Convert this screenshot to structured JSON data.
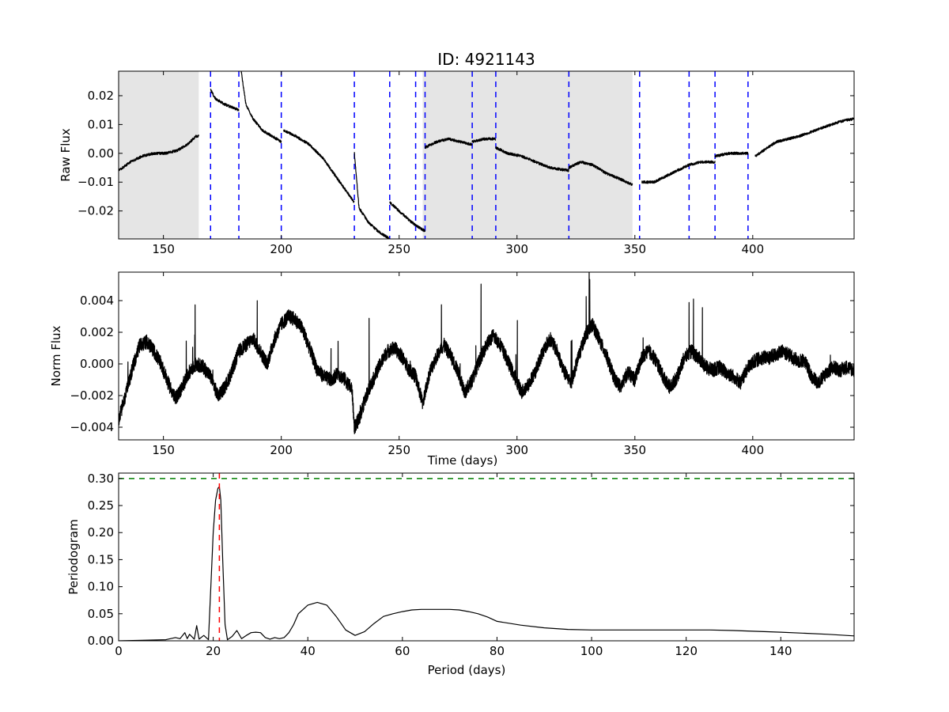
{
  "figure_title": "ID: 4921143",
  "chart_data": [
    {
      "type": "line",
      "id": "raw",
      "title": "ID: 4921143",
      "xlabel": "",
      "ylabel": "Raw Flux",
      "xlim": [
        131,
        443
      ],
      "ylim": [
        -0.0297,
        0.0285
      ],
      "xticks": [
        150,
        200,
        250,
        300,
        350,
        400
      ],
      "yticks": [
        -0.02,
        -0.01,
        0.0,
        0.01,
        0.02
      ],
      "xtick_labels": [
        "150",
        "200",
        "250",
        "300",
        "350",
        "400"
      ],
      "ytick_labels": [
        "−0.02",
        "−0.01",
        "0.00",
        "0.01",
        "0.02"
      ],
      "shaded_regions": [
        [
          131,
          165
        ],
        [
          260,
          349
        ]
      ],
      "vlines": [
        170,
        182,
        200,
        231,
        246,
        257,
        261,
        281,
        291,
        322,
        352,
        373,
        384,
        398
      ],
      "vline_color": "#0000ff",
      "series_color": "#000000",
      "series": [
        {
          "name": "",
          "x": [
            131,
            136,
            141,
            146,
            151,
            156,
            160,
            164,
            165
          ],
          "y": [
            -0.006,
            -0.003,
            -0.001,
            0.0,
            0.0,
            0.001,
            0.003,
            0.006,
            0.006
          ]
        },
        {
          "name": "",
          "x": [
            170,
            172,
            176,
            182
          ],
          "y": [
            0.022,
            0.019,
            0.017,
            0.015
          ]
        },
        {
          "name": "",
          "x": [
            183,
            185,
            188,
            192,
            196,
            200
          ],
          "y": [
            0.0285,
            0.017,
            0.012,
            0.008,
            0.006,
            0.004
          ]
        },
        {
          "name": "",
          "x": [
            201,
            206,
            212,
            218,
            224,
            231
          ],
          "y": [
            0.008,
            0.006,
            0.003,
            -0.002,
            -0.009,
            -0.017
          ]
        },
        {
          "name": "",
          "x": [
            231,
            233,
            237,
            241,
            246
          ],
          "y": [
            0.0,
            -0.019,
            -0.024,
            -0.027,
            -0.0297
          ]
        },
        {
          "name": "",
          "x": [
            246,
            250,
            254,
            257
          ],
          "y": [
            -0.017,
            -0.02,
            -0.023,
            -0.025
          ]
        },
        {
          "name": "",
          "x": [
            257,
            259,
            261
          ],
          "y": [
            -0.025,
            -0.026,
            -0.027
          ]
        },
        {
          "name": "",
          "x": [
            261,
            266,
            271,
            276,
            281
          ],
          "y": [
            0.002,
            0.004,
            0.005,
            0.004,
            0.003
          ]
        },
        {
          "name": "",
          "x": [
            281,
            286,
            291
          ],
          "y": [
            0.004,
            0.005,
            0.005
          ]
        },
        {
          "name": "",
          "x": [
            291,
            296,
            302,
            308,
            314,
            322
          ],
          "y": [
            0.002,
            0.0,
            -0.001,
            -0.003,
            -0.005,
            -0.006
          ]
        },
        {
          "name": "",
          "x": [
            322,
            327,
            332,
            338,
            344,
            349
          ],
          "y": [
            -0.005,
            -0.003,
            -0.004,
            -0.007,
            -0.009,
            -0.011
          ]
        },
        {
          "name": "",
          "x": [
            353,
            358,
            363,
            368,
            373
          ],
          "y": [
            -0.01,
            -0.01,
            -0.008,
            -0.006,
            -0.004
          ]
        },
        {
          "name": "",
          "x": [
            373,
            378,
            384
          ],
          "y": [
            -0.004,
            -0.003,
            -0.003
          ]
        },
        {
          "name": "",
          "x": [
            384,
            390,
            395,
            398
          ],
          "y": [
            -0.001,
            0.0,
            0.0,
            0.0
          ]
        },
        {
          "name": "",
          "x": [
            401,
            410,
            420,
            430,
            437,
            443
          ],
          "y": [
            -0.001,
            0.004,
            0.006,
            0.009,
            0.011,
            0.012
          ]
        }
      ]
    },
    {
      "type": "line",
      "id": "norm",
      "title": "",
      "xlabel": "Time (days)",
      "ylabel": "Norm Flux",
      "xlim": [
        131,
        443
      ],
      "ylim": [
        -0.0048,
        0.0058
      ],
      "xticks": [
        150,
        200,
        250,
        300,
        350,
        400
      ],
      "yticks": [
        -0.004,
        -0.002,
        0.0,
        0.002,
        0.004
      ],
      "xtick_labels": [
        "150",
        "200",
        "250",
        "300",
        "350",
        "400"
      ],
      "ytick_labels": [
        "−0.004",
        "−0.002",
        "0.000",
        "0.002",
        "0.004"
      ],
      "series_color": "#000000",
      "series": [
        {
          "name": "",
          "x": [
            131,
            134,
            137,
            140,
            143,
            146,
            149,
            152,
            155,
            158,
            161,
            164,
            167,
            170,
            173,
            176,
            179,
            182,
            185,
            188,
            191,
            194,
            197,
            200,
            203,
            206,
            209,
            212,
            215,
            218,
            221,
            224,
            227,
            230,
            231,
            233,
            236,
            239,
            242,
            245,
            248,
            251,
            254,
            257,
            260,
            263,
            266,
            269,
            272,
            275,
            278,
            281,
            284,
            287,
            290,
            293,
            296,
            299,
            302,
            305,
            308,
            311,
            314,
            317,
            320,
            323,
            326,
            329,
            332,
            335,
            338,
            341,
            344,
            347,
            350,
            353,
            356,
            359,
            362,
            365,
            368,
            371,
            374,
            377,
            380,
            383,
            386,
            389,
            392,
            395,
            398,
            401,
            404,
            407,
            410,
            413,
            416,
            419,
            422,
            425,
            428,
            431,
            434,
            437,
            440,
            443
          ],
          "y": [
            -0.0035,
            -0.002,
            -0.0002,
            0.0012,
            0.0014,
            0.0008,
            0.0,
            -0.0012,
            -0.0022,
            -0.0015,
            -0.0005,
            0.0,
            -0.0002,
            -0.0008,
            -0.002,
            -0.0015,
            -0.0005,
            0.0008,
            0.0012,
            0.0016,
            0.0008,
            0.0,
            0.0015,
            0.0025,
            0.003,
            0.0028,
            0.0022,
            0.001,
            -0.0003,
            -0.0008,
            -0.001,
            -0.0006,
            -0.001,
            -0.0016,
            -0.004,
            -0.0035,
            -0.002,
            -0.001,
            0.0,
            0.0008,
            0.001,
            0.0005,
            -0.0003,
            -0.0008,
            -0.0025,
            -0.0005,
            0.0005,
            0.0012,
            0.0005,
            -0.0005,
            -0.0018,
            -0.001,
            0.0002,
            0.0012,
            0.0018,
            0.0012,
            0.0002,
            -0.0008,
            -0.0018,
            -0.0013,
            -0.0004,
            0.0008,
            0.0016,
            0.0008,
            -0.0005,
            -0.0012,
            0.0004,
            0.0018,
            0.0025,
            0.0015,
            0.0005,
            -0.0008,
            -0.0015,
            -0.0005,
            -0.001,
            0.0004,
            0.0008,
            0.0002,
            -0.0008,
            -0.0015,
            -0.0008,
            0.0004,
            0.0008,
            0.0004,
            -0.0002,
            -0.0004,
            -0.0002,
            -0.0006,
            -0.0008,
            -0.0012,
            -0.0002,
            0.0002,
            0.0004,
            0.0004,
            0.0006,
            0.0008,
            0.0005,
            0.0002,
            0.0002,
            -0.0008,
            -0.0012,
            -0.0006,
            -0.0002,
            -0.0004,
            -0.0002,
            -0.0004
          ]
        }
      ]
    },
    {
      "type": "line",
      "id": "periodogram",
      "title": "",
      "xlabel": "Period (days)",
      "ylabel": "Periodogram",
      "xlim": [
        0,
        155.5
      ],
      "ylim": [
        0,
        0.31
      ],
      "xticks": [
        0,
        20,
        40,
        60,
        80,
        100,
        120,
        140
      ],
      "yticks": [
        0.0,
        0.05,
        0.1,
        0.15,
        0.2,
        0.25,
        0.3
      ],
      "xtick_labels": [
        "0",
        "20",
        "40",
        "60",
        "80",
        "100",
        "120",
        "140"
      ],
      "ytick_labels": [
        "0.00",
        "0.05",
        "0.10",
        "0.15",
        "0.20",
        "0.25",
        "0.30"
      ],
      "hline": 0.3,
      "hline_color": "#008000",
      "vline": 21.3,
      "vline_color": "#ff0000",
      "series_color": "#000000",
      "series": [
        {
          "name": "",
          "x": [
            0,
            5,
            10,
            12,
            13,
            14,
            14.5,
            15,
            16,
            16.5,
            17,
            18,
            19,
            19.5,
            20,
            20.5,
            21,
            21.3,
            21.6,
            22,
            22.5,
            23,
            24,
            25,
            26,
            27,
            28,
            29,
            30,
            31,
            32,
            33,
            34,
            35,
            36,
            37,
            38,
            40,
            42,
            44,
            46,
            48,
            50,
            52,
            54,
            56,
            58,
            60,
            62,
            64,
            66,
            68,
            70,
            72,
            74,
            76,
            78,
            80,
            85,
            90,
            95,
            100,
            110,
            120,
            125,
            130,
            140,
            150,
            155.5
          ],
          "y": [
            0.0,
            0.001,
            0.002,
            0.006,
            0.004,
            0.015,
            0.004,
            0.012,
            0.003,
            0.028,
            0.003,
            0.01,
            0.002,
            0.1,
            0.2,
            0.26,
            0.282,
            0.285,
            0.26,
            0.15,
            0.03,
            0.002,
            0.008,
            0.019,
            0.004,
            0.01,
            0.015,
            0.016,
            0.015,
            0.006,
            0.003,
            0.006,
            0.004,
            0.006,
            0.015,
            0.03,
            0.05,
            0.066,
            0.071,
            0.066,
            0.045,
            0.02,
            0.01,
            0.017,
            0.032,
            0.045,
            0.05,
            0.054,
            0.057,
            0.058,
            0.058,
            0.058,
            0.058,
            0.057,
            0.054,
            0.05,
            0.044,
            0.036,
            0.029,
            0.024,
            0.021,
            0.02,
            0.02,
            0.02,
            0.02,
            0.019,
            0.016,
            0.012,
            0.009
          ]
        }
      ]
    }
  ]
}
